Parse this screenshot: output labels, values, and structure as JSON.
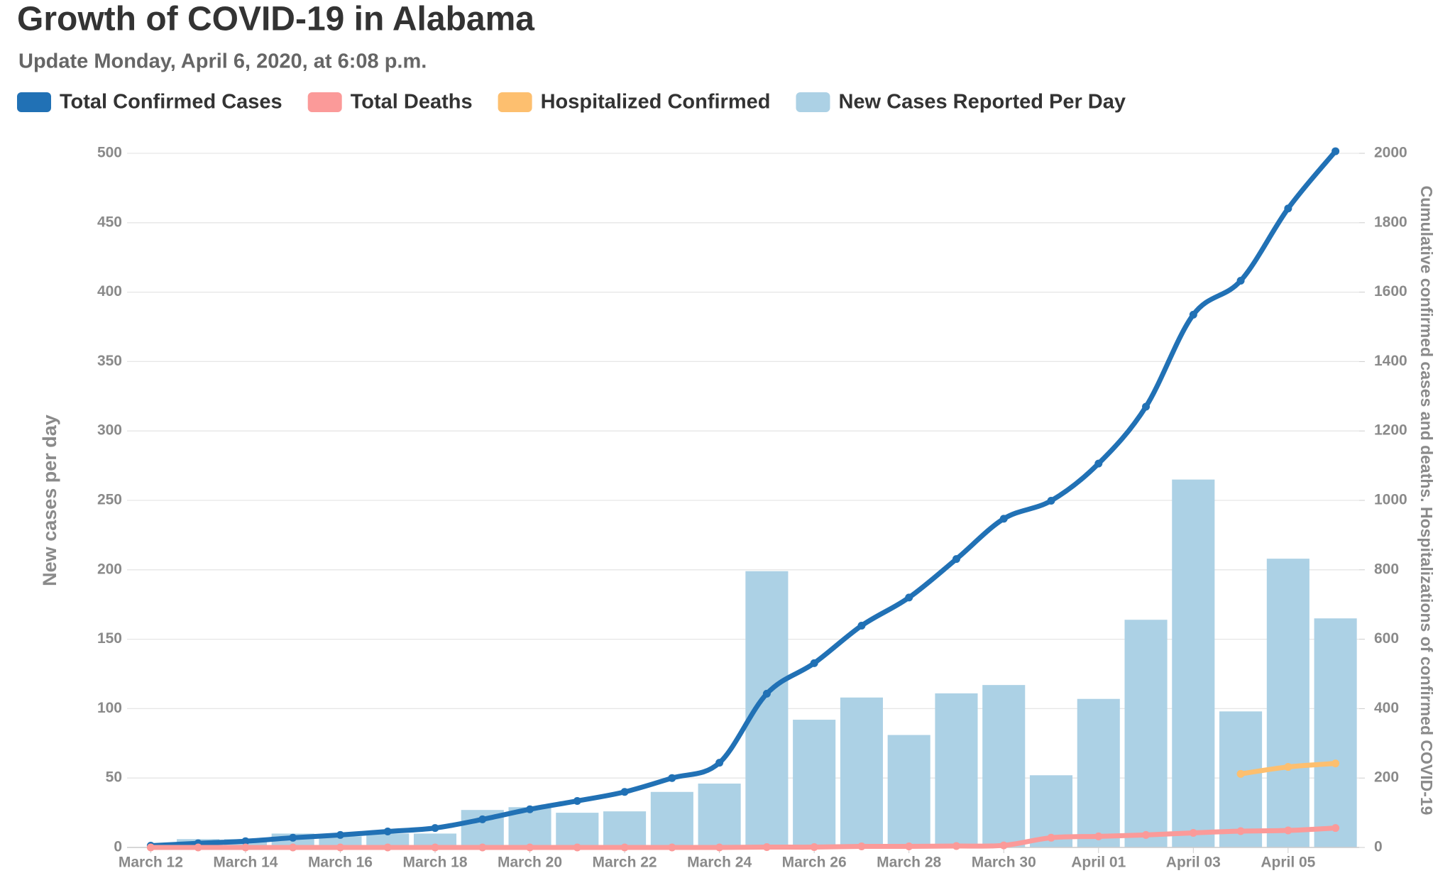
{
  "chart_data": {
    "type": "bar",
    "title": "Growth of COVID-19 in Alabama",
    "subtitle": "Update Monday, April 6, 2020, at 6:08 p.m.",
    "y_label": "New cases per day",
    "y2_label": "Cumulative confirmed cases and deaths. Hospitalizations of confirmed COVID-19",
    "categories": [
      "March 12",
      null,
      "March 14",
      null,
      "March 16",
      null,
      "March 18",
      null,
      "March 20",
      null,
      "March 22",
      null,
      "March 24",
      null,
      "March 26",
      null,
      "March 28",
      null,
      "March 30",
      null,
      "April 01",
      null,
      "April 03",
      null,
      "April 05",
      null
    ],
    "series": [
      {
        "name": "Total Confirmed Cases",
        "type": "line",
        "axis": "y2",
        "color": "#2171b5",
        "values": [
          5,
          12,
          18,
          28,
          36,
          46,
          56,
          81,
          110,
          134,
          160,
          200,
          244,
          443,
          531,
          639,
          720,
          831,
          947,
          999,
          1106,
          1270,
          1535,
          1633,
          1841,
          2006
        ]
      },
      {
        "name": "Total Deaths",
        "type": "line",
        "axis": "y2",
        "color": "#fb9a99",
        "values": [
          0,
          0,
          0,
          0,
          0,
          0,
          0,
          0,
          0,
          0,
          0,
          0,
          0,
          1,
          1,
          3,
          3,
          4,
          6,
          28,
          32,
          36,
          42,
          47,
          49,
          56
        ]
      },
      {
        "name": "Hospitalized Confirmed",
        "type": "line",
        "axis": "y2",
        "color": "#fdbf6f",
        "values": [
          null,
          null,
          null,
          null,
          null,
          null,
          null,
          null,
          null,
          null,
          null,
          null,
          null,
          null,
          null,
          null,
          null,
          null,
          null,
          null,
          null,
          null,
          null,
          212,
          232,
          242
        ]
      },
      {
        "name": "New Cases Reported Per Day",
        "type": "bar",
        "color": "#acd1e5",
        "values": [
          0,
          6,
          6,
          10,
          8,
          10,
          10,
          27,
          29,
          25,
          26,
          40,
          46,
          199,
          92,
          108,
          81,
          111,
          117,
          52,
          107,
          164,
          265,
          98,
          208,
          165
        ]
      }
    ],
    "ylim": [
      0,
      500
    ],
    "yticks": [
      0,
      50,
      100,
      150,
      200,
      250,
      300,
      350,
      400,
      450,
      500
    ],
    "y2lim": [
      0,
      2000
    ],
    "y2ticks": [
      0,
      200,
      400,
      600,
      800,
      1000,
      1200,
      1400,
      1600,
      1800,
      2000
    ],
    "grid": true
  }
}
